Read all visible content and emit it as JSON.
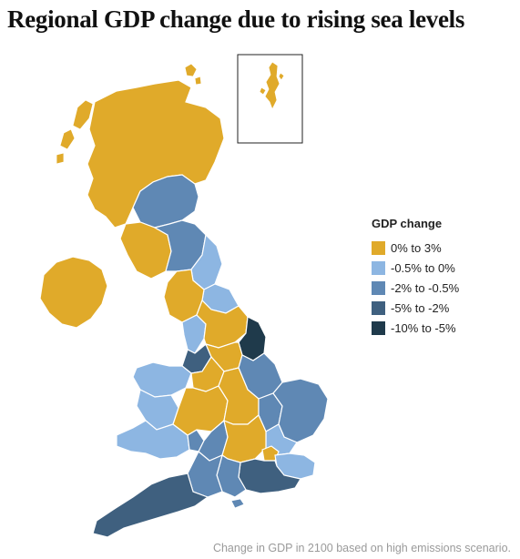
{
  "title": "Regional GDP change due to rising sea levels",
  "legend": {
    "title": "GDP change",
    "items": [
      {
        "label": "0% to 3%",
        "color": "#e0aa2a"
      },
      {
        "label": "-0.5% to 0%",
        "color": "#8db6e2"
      },
      {
        "label": "-2% to -0.5%",
        "color": "#5f88b4"
      },
      {
        "label": "-5% to -2%",
        "color": "#3f607f"
      },
      {
        "label": "-10% to -5%",
        "color": "#1f3a4b"
      }
    ]
  },
  "caption": "Change in GDP in 2100 based on high emissions scenario."
}
